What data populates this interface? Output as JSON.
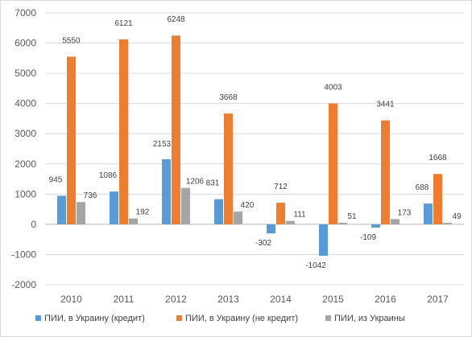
{
  "chart_data": {
    "type": "bar",
    "categories": [
      "2010",
      "2011",
      "2012",
      "2013",
      "2014",
      "2015",
      "2016",
      "2017"
    ],
    "series": [
      {
        "name": "ПИИ, в Украину (кредит)",
        "color": "#5b9bd5",
        "values": [
          945,
          1086,
          2153,
          831,
          -302,
          -1042,
          -109,
          688
        ]
      },
      {
        "name": "ПИИ, в Украину (не кредит)",
        "color": "#ed7d31",
        "values": [
          5550,
          6121,
          6248,
          3668,
          712,
          4003,
          3441,
          1668
        ]
      },
      {
        "name": "ПИИ, из Украины",
        "color": "#a5a5a5",
        "values": [
          736,
          192,
          1206,
          420,
          111,
          51,
          173,
          49
        ]
      }
    ],
    "ylim": [
      -2000,
      7000
    ],
    "yticks": [
      -2000,
      -1000,
      0,
      1000,
      2000,
      3000,
      4000,
      5000,
      6000,
      7000
    ],
    "grid": true,
    "legend_position": "bottom"
  }
}
